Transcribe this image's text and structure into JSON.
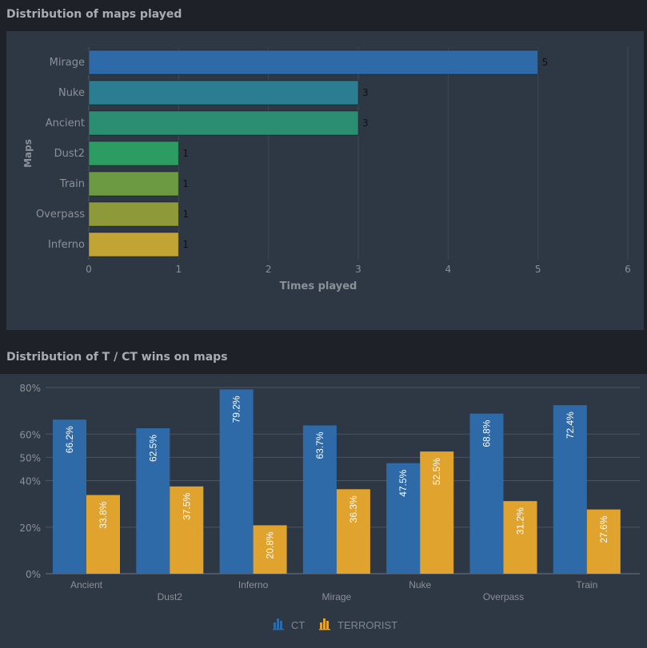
{
  "sections": {
    "maps_played_title": "Distribution of maps played",
    "wins_title": "Distribution of T / CT wins on maps"
  },
  "chart_data": [
    {
      "type": "bar",
      "orientation": "horizontal",
      "title": "Distribution of maps played",
      "categories": [
        "Mirage",
        "Nuke",
        "Ancient",
        "Dust2",
        "Train",
        "Overpass",
        "Inferno"
      ],
      "values": [
        5,
        3,
        3,
        1,
        1,
        1,
        1
      ],
      "colors": [
        "#2e6aa7",
        "#2b7e92",
        "#2b8d72",
        "#2c9c62",
        "#6c9a43",
        "#8e9a39",
        "#c1a434"
      ],
      "xlabel": "Times played",
      "ylabel": "Maps",
      "xlim": [
        0,
        6
      ],
      "xticks": [
        "0",
        "1",
        "2",
        "3",
        "4",
        "5",
        "6"
      ],
      "grid": true
    },
    {
      "type": "bar",
      "title": "Distribution of T / CT wins on maps",
      "categories": [
        "Ancient",
        "Dust2",
        "Inferno",
        "Mirage",
        "Nuke",
        "Overpass",
        "Train"
      ],
      "series": [
        {
          "name": "CT",
          "color": "#2e6aa7",
          "values": [
            66.2,
            62.5,
            79.2,
            63.7,
            47.5,
            68.8,
            72.4
          ]
        },
        {
          "name": "TERRORIST",
          "color": "#e0a32e",
          "values": [
            33.8,
            37.5,
            20.8,
            36.3,
            52.5,
            31.2,
            27.6
          ]
        }
      ],
      "yticks": [
        "0%",
        "20%",
        "40%",
        "50%",
        "60%",
        "80%"
      ],
      "ylim": [
        0,
        80
      ],
      "legend": "bottom-center",
      "grid": true
    }
  ]
}
